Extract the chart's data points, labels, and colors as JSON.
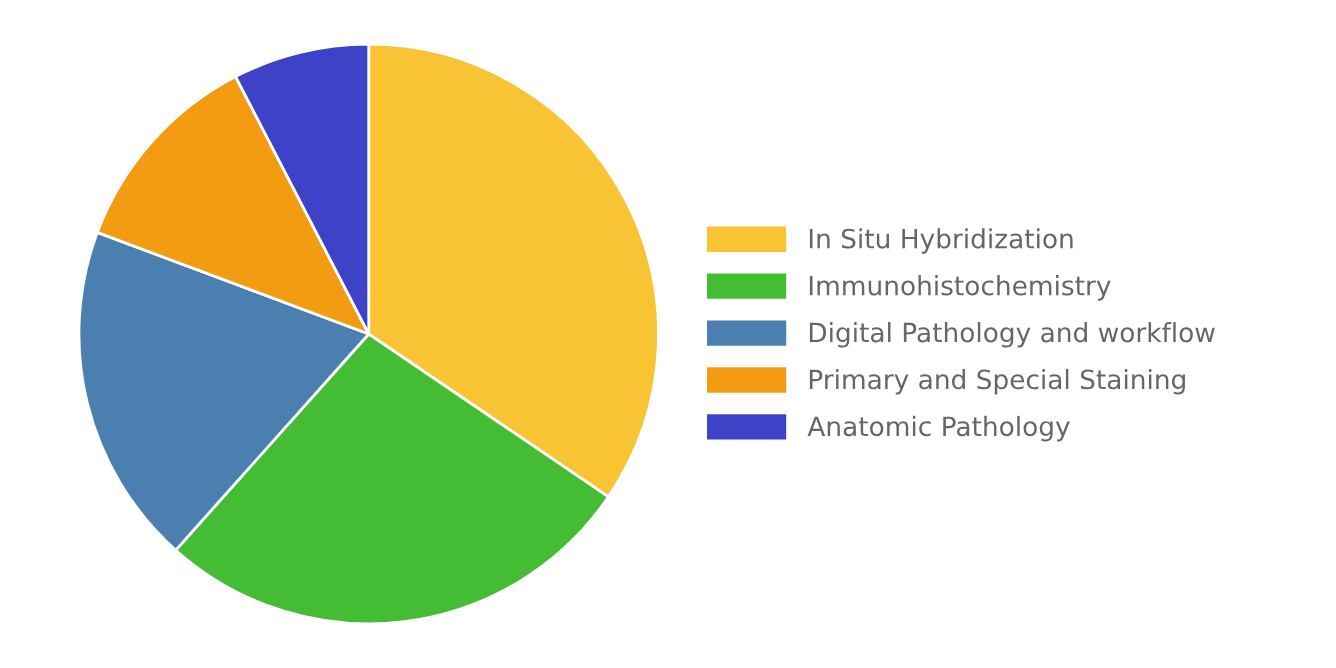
{
  "chart_data": {
    "type": "pie",
    "categories": [
      "In Situ Hybridization",
      "Immunohistochemistry",
      "Digital Pathology and workflow",
      "Primary and Special Staining",
      "Anatomic Pathology"
    ],
    "values": [
      34.5,
      27.1,
      19.1,
      11.7,
      7.6
    ],
    "colors": [
      "#f9c433",
      "#44bd35",
      "#4a7fb0",
      "#f39c12",
      "#3e42c8"
    ],
    "legend": "right"
  }
}
